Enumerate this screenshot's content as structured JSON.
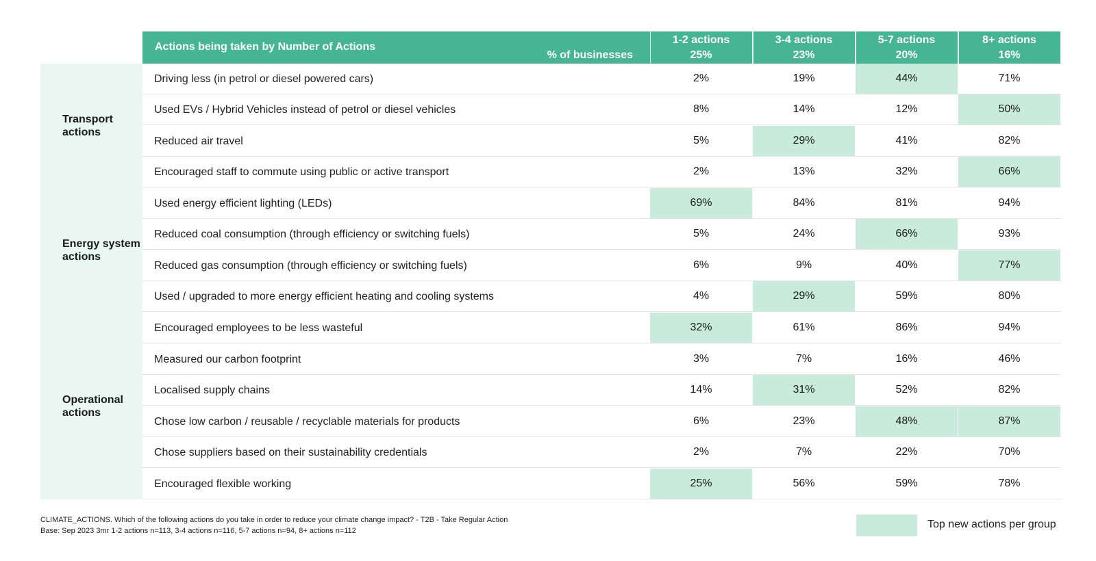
{
  "header": {
    "title": "Actions being taken by Number of Actions",
    "subtitle": "% of businesses",
    "columns": [
      {
        "label": "1-2 actions",
        "base": "25%"
      },
      {
        "label": "3-4 actions",
        "base": "23%"
      },
      {
        "label": "5-7 actions",
        "base": "20%"
      },
      {
        "label": "8+ actions",
        "base": "16%"
      }
    ]
  },
  "groups": [
    {
      "label_line1": "Transport",
      "label_line2": "actions"
    },
    {
      "label_line1": "Energy system",
      "label_line2": "actions"
    },
    {
      "label_line1": "Operational",
      "label_line2": "actions"
    }
  ],
  "rows": [
    {
      "label": "Driving less (in petrol or diesel powered cars)",
      "values": [
        "2%",
        "19%",
        "44%",
        "71%"
      ],
      "highlight": [
        false,
        false,
        true,
        false
      ]
    },
    {
      "label": "Used EVs / Hybrid Vehicles instead of petrol or diesel vehicles",
      "values": [
        "8%",
        "14%",
        "12%",
        "50%"
      ],
      "highlight": [
        false,
        false,
        false,
        true
      ]
    },
    {
      "label": "Reduced air travel",
      "values": [
        "5%",
        "29%",
        "41%",
        "82%"
      ],
      "highlight": [
        false,
        true,
        false,
        false
      ]
    },
    {
      "label": "Encouraged staff to commute using public or active transport",
      "values": [
        "2%",
        "13%",
        "32%",
        "66%"
      ],
      "highlight": [
        false,
        false,
        false,
        true
      ]
    },
    {
      "label": "Used energy efficient lighting (LEDs)",
      "values": [
        "69%",
        "84%",
        "81%",
        "94%"
      ],
      "highlight": [
        true,
        false,
        false,
        false
      ]
    },
    {
      "label": "Reduced coal consumption (through efficiency or switching fuels)",
      "values": [
        "5%",
        "24%",
        "66%",
        "93%"
      ],
      "highlight": [
        false,
        false,
        true,
        false
      ]
    },
    {
      "label": "Reduced gas consumption (through efficiency or switching fuels)",
      "values": [
        "6%",
        "9%",
        "40%",
        "77%"
      ],
      "highlight": [
        false,
        false,
        false,
        true
      ]
    },
    {
      "label": "Used / upgraded to more energy efficient heating and cooling systems",
      "values": [
        "4%",
        "29%",
        "59%",
        "80%"
      ],
      "highlight": [
        false,
        true,
        false,
        false
      ]
    },
    {
      "label": "Encouraged employees to be less wasteful",
      "values": [
        "32%",
        "61%",
        "86%",
        "94%"
      ],
      "highlight": [
        true,
        false,
        false,
        false
      ]
    },
    {
      "label": "Measured our carbon footprint",
      "values": [
        "3%",
        "7%",
        "16%",
        "46%"
      ],
      "highlight": [
        false,
        false,
        false,
        false
      ]
    },
    {
      "label": "Localised supply chains",
      "values": [
        "14%",
        "31%",
        "52%",
        "82%"
      ],
      "highlight": [
        false,
        true,
        false,
        false
      ]
    },
    {
      "label": "Chose low carbon / reusable / recyclable materials for products",
      "values": [
        "6%",
        "23%",
        "48%",
        "87%"
      ],
      "highlight": [
        false,
        false,
        true,
        true
      ]
    },
    {
      "label": "Chose suppliers based on their sustainability credentials",
      "values": [
        "2%",
        "7%",
        "22%",
        "70%"
      ],
      "highlight": [
        false,
        false,
        false,
        false
      ]
    },
    {
      "label": "Encouraged flexible working",
      "values": [
        "25%",
        "56%",
        "59%",
        "78%"
      ],
      "highlight": [
        true,
        false,
        false,
        false
      ]
    }
  ],
  "footer": {
    "question": "CLIMATE_ACTIONS. Which of the following actions do you take in order to reduce your climate change impact? - T2B - Take Regular Action",
    "base": "Base: Sep 2023 3mr 1-2 actions n=113, 3-4 actions n=116, 5-7 actions n=94, 8+ actions n=112"
  },
  "legend": {
    "label": "Top new actions per group",
    "color": "#c8ebde"
  },
  "colors": {
    "header": "#45b592",
    "group_bg": "#e9f6f2",
    "highlight": "#c8ebde"
  }
}
